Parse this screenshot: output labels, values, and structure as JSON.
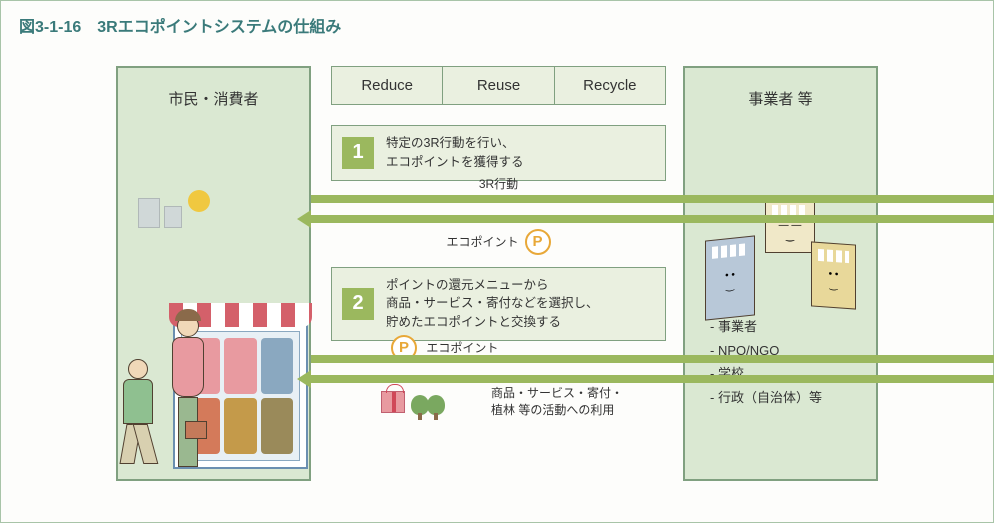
{
  "title": "図3-1-16　3Rエコポイントシステムの仕組み",
  "left_panel": {
    "title": "市民・消費者"
  },
  "right_panel": {
    "title": "事業者 等",
    "list": [
      "事業者",
      "NPO/NGO",
      "学校",
      "行政（自治体）等"
    ]
  },
  "rrr": [
    "Reduce",
    "Reuse",
    "Recycle"
  ],
  "steps": [
    {
      "num": "1",
      "text": "特定の3R行動を行い、\nエコポイントを獲得する"
    },
    {
      "num": "2",
      "text": "ポイントの還元メニューから\n商品・サービス・寄付などを選択し、\n貯めたエコポイントと交換する"
    }
  ],
  "arrows": {
    "first": {
      "top_label": "3R行動",
      "bottom_label": "エコポイント"
    },
    "second": {
      "top_label": "エコポイント",
      "bottom_label": "商品・サービス・寄付・\n植林 等の活動への利用"
    }
  },
  "p_badge": "P",
  "colors": {
    "panel_border": "#80a080",
    "panel_fill": "#dae8d2",
    "accent": "#9bb85e",
    "title": "#3a7a7a",
    "p_badge": "#e8a838"
  }
}
